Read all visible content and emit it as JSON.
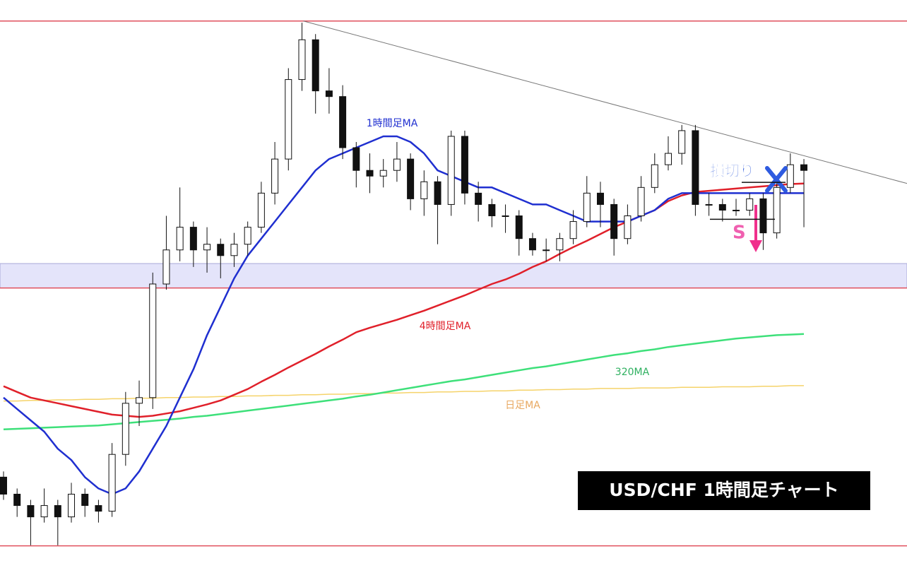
{
  "chart_data": {
    "type": "candlestick",
    "title": "USD/CHF 1時間足チャート",
    "xlim": [
      -0.26,
      66.6
    ],
    "ylim": [
      0,
      100
    ],
    "grid": false,
    "candles": [
      [
        16,
        17,
        12,
        13
      ],
      [
        13,
        14,
        9,
        11
      ],
      [
        11,
        12,
        4,
        9
      ],
      [
        9,
        14,
        8,
        11
      ],
      [
        11,
        12,
        4,
        9
      ],
      [
        9,
        15,
        8,
        13
      ],
      [
        13,
        14,
        9,
        11
      ],
      [
        11,
        12,
        8,
        10
      ],
      [
        10,
        22,
        9,
        20
      ],
      [
        20,
        31,
        18,
        29
      ],
      [
        29,
        33,
        25,
        30
      ],
      [
        30,
        52,
        28,
        50
      ],
      [
        50,
        62,
        49,
        56
      ],
      [
        56,
        67,
        54,
        60
      ],
      [
        60,
        61,
        53,
        56
      ],
      [
        56,
        60,
        52,
        57
      ],
      [
        57,
        58,
        51,
        55
      ],
      [
        55,
        59,
        53,
        57
      ],
      [
        57,
        61,
        55,
        60
      ],
      [
        60,
        68,
        59,
        66
      ],
      [
        66,
        75,
        64,
        72
      ],
      [
        72,
        88,
        70,
        86
      ],
      [
        86,
        96,
        84,
        93
      ],
      [
        93,
        94,
        80,
        84
      ],
      [
        84,
        88,
        80,
        83
      ],
      [
        83,
        85,
        72,
        74
      ],
      [
        74,
        75,
        67,
        70
      ],
      [
        70,
        73,
        66,
        69
      ],
      [
        69,
        72,
        67,
        70
      ],
      [
        70,
        75,
        68,
        72
      ],
      [
        72,
        73,
        63,
        65
      ],
      [
        65,
        70,
        62,
        68
      ],
      [
        68,
        69,
        57,
        64
      ],
      [
        64,
        77,
        62,
        76
      ],
      [
        76,
        77,
        64,
        66
      ],
      [
        66,
        68,
        61,
        64
      ],
      [
        64,
        65,
        60,
        62
      ],
      [
        62,
        64,
        59,
        62
      ],
      [
        62,
        63,
        55,
        58
      ],
      [
        58,
        59,
        55,
        56
      ],
      [
        56,
        58,
        54,
        56
      ],
      [
        56,
        59,
        54,
        58
      ],
      [
        58,
        63,
        57,
        61
      ],
      [
        61,
        69,
        60,
        66
      ],
      [
        66,
        68,
        60,
        64
      ],
      [
        64,
        65,
        55,
        58
      ],
      [
        58,
        64,
        57,
        62
      ],
      [
        62,
        69,
        61,
        67
      ],
      [
        67,
        73,
        66,
        71
      ],
      [
        71,
        76,
        70,
        73
      ],
      [
        73,
        78,
        71,
        77
      ],
      [
        77,
        78,
        62,
        64
      ],
      [
        64,
        66,
        62,
        64
      ],
      [
        64,
        65,
        61,
        63
      ],
      [
        63,
        65,
        62,
        63
      ],
      [
        63,
        66,
        62,
        65
      ],
      [
        65,
        66,
        56,
        59
      ],
      [
        59,
        68,
        58,
        67
      ],
      [
        67,
        73,
        66,
        71
      ],
      [
        71,
        72,
        60,
        70
      ]
    ],
    "series": [
      {
        "name": "1時間足MA",
        "color": "#1f2fd0",
        "values": [
          30,
          28,
          26,
          24,
          21,
          19,
          16,
          14,
          13,
          14,
          17,
          21,
          25,
          30,
          35,
          41,
          46,
          51,
          55,
          58,
          61,
          64,
          67,
          70,
          72,
          73,
          74,
          75,
          76,
          76,
          75,
          73,
          70,
          69,
          68,
          67,
          67,
          66,
          65,
          64,
          64,
          63,
          62,
          61,
          61,
          61,
          61,
          62,
          63,
          65,
          66,
          66,
          66,
          66,
          66,
          66,
          66,
          66,
          66,
          66
        ]
      },
      {
        "name": "4時間足MA",
        "color": "#e0202a",
        "values": [
          32,
          31,
          30,
          29.5,
          29,
          28.5,
          28,
          27.5,
          27,
          26.8,
          26.6,
          26.8,
          27.2,
          27.6,
          28.2,
          28.8,
          29.5,
          30.5,
          31.5,
          32.8,
          34,
          35.3,
          36.5,
          37.7,
          39,
          40.2,
          41.5,
          42.3,
          43,
          43.7,
          44.5,
          45.3,
          46.2,
          47.1,
          48,
          49,
          50,
          50.8,
          51.8,
          53,
          54,
          55.3,
          56.5,
          57.6,
          58.8,
          60,
          61,
          62,
          63,
          64.6,
          65.6,
          66.2,
          66.4,
          66.6,
          66.8,
          67,
          67.2,
          67.4,
          67.6,
          67.7
        ]
      },
      {
        "name": "320MA",
        "color": "#3ee07a",
        "values": [
          24.4,
          24.5,
          24.6,
          24.7,
          24.8,
          24.9,
          25,
          25.1,
          25.3,
          25.5,
          25.7,
          25.9,
          26.1,
          26.3,
          26.6,
          26.8,
          27.1,
          27.4,
          27.7,
          28,
          28.3,
          28.6,
          28.9,
          29.2,
          29.5,
          29.8,
          30.2,
          30.5,
          30.9,
          31.3,
          31.7,
          32.1,
          32.5,
          32.9,
          33.2,
          33.6,
          34,
          34.4,
          34.8,
          35.2,
          35.5,
          35.9,
          36.3,
          36.7,
          37.1,
          37.5,
          37.8,
          38.2,
          38.5,
          38.9,
          39.2,
          39.5,
          39.8,
          40.1,
          40.4,
          40.6,
          40.8,
          41,
          41.1,
          41.2
        ]
      },
      {
        "name": "日足MA",
        "color": "#f5d36a",
        "values": [
          29.4,
          29.4,
          29.5,
          29.5,
          29.6,
          29.6,
          29.7,
          29.7,
          29.8,
          29.8,
          29.9,
          29.9,
          30,
          30,
          30.1,
          30.1,
          30.2,
          30.2,
          30.3,
          30.3,
          30.4,
          30.4,
          30.5,
          30.5,
          30.6,
          30.6,
          30.7,
          30.7,
          30.8,
          30.8,
          30.9,
          30.9,
          31,
          31,
          31.1,
          31.1,
          31.2,
          31.2,
          31.3,
          31.3,
          31.4,
          31.4,
          31.5,
          31.5,
          31.6,
          31.6,
          31.6,
          31.7,
          31.7,
          31.7,
          31.8,
          31.8,
          31.8,
          31.9,
          31.9,
          31.9,
          32,
          32,
          32.1,
          32.1
        ]
      }
    ],
    "levels": [
      96.3,
      3.9
    ],
    "zone": [
      49.3,
      53.6
    ],
    "trendline": {
      "x": [
        22.1,
        66.6
      ],
      "y": [
        96.3,
        67.7
      ]
    },
    "stop_level": 67.9,
    "entry_level": 61.4,
    "annotations": {
      "stop": "損切り",
      "sell": "S"
    }
  }
}
